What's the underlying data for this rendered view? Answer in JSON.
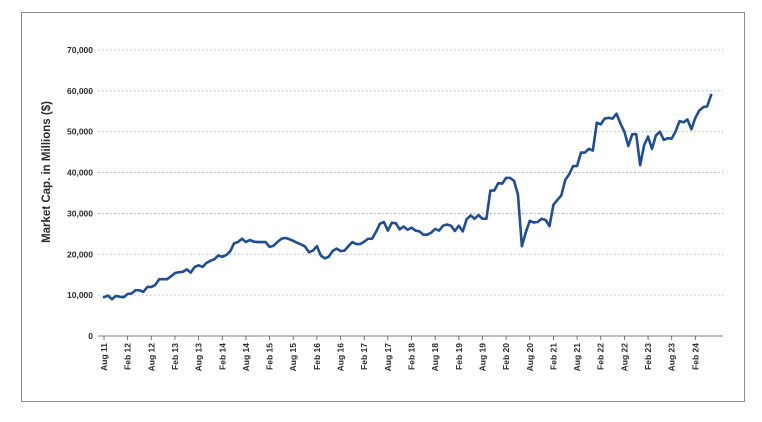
{
  "chart_data": {
    "type": "line",
    "title": "",
    "xlabel": "",
    "ylabel": "Market Cap. in Millions ($)",
    "ylim": [
      0,
      70000
    ],
    "yticks": [
      "0",
      "10,000",
      "20,000",
      "30,000",
      "40,000",
      "50,000",
      "60,000",
      "70,000"
    ],
    "ytick_values": [
      0,
      10000,
      20000,
      30000,
      40000,
      50000,
      60000,
      70000
    ],
    "xticks": [
      "Aug 11",
      "Feb 12",
      "Aug 12",
      "Feb 13",
      "Aug 13",
      "Feb 14",
      "Aug 14",
      "Feb 15",
      "Aug 15",
      "Feb 16",
      "Aug 16",
      "Feb 17",
      "Aug 17",
      "Feb 18",
      "Aug 18",
      "Feb 19",
      "Aug 19",
      "Feb 20",
      "Aug 20",
      "Feb 21",
      "Aug 21",
      "Feb 22",
      "Aug 22",
      "Feb 23",
      "Aug 23",
      "Feb 24"
    ],
    "grid": true,
    "line_color": "#1f4e96",
    "series": [
      {
        "x_month_index": [
          0,
          1,
          2,
          3,
          4,
          5,
          6,
          7,
          8,
          9,
          10,
          11,
          12,
          13,
          14,
          15,
          16,
          17,
          18,
          19,
          20,
          21,
          22,
          23,
          24,
          25,
          26,
          27,
          28,
          29,
          30,
          31,
          32,
          33,
          34,
          35,
          36,
          37,
          38,
          39,
          40,
          41,
          42,
          43,
          44,
          45,
          46,
          47,
          48,
          49,
          50,
          51,
          52,
          53,
          54,
          55,
          56,
          57,
          58,
          59,
          60,
          61,
          62,
          63,
          64,
          65,
          66,
          67,
          68,
          69,
          70,
          71,
          72,
          73,
          74,
          75,
          76,
          77,
          78,
          79,
          80,
          81,
          82,
          83,
          84,
          85,
          86,
          87,
          88,
          89,
          90,
          91,
          92,
          93,
          94,
          95,
          96,
          97,
          98,
          99,
          100,
          101,
          102,
          103,
          104,
          105,
          106,
          107,
          108,
          109,
          110,
          111,
          112,
          113,
          114,
          115,
          116,
          117,
          118,
          119,
          120,
          121,
          122,
          123,
          124,
          125,
          126,
          127,
          128,
          129,
          130,
          131,
          132,
          133,
          134,
          135,
          136,
          137,
          138,
          139,
          140,
          141,
          142,
          143,
          144,
          145,
          146,
          147,
          148,
          149,
          150,
          151,
          152,
          153,
          154,
          155,
          156
        ],
        "values": [
          9500,
          9900,
          9000,
          9800,
          9600,
          9500,
          10300,
          10400,
          11200,
          11200,
          10800,
          12000,
          12000,
          12500,
          13900,
          13900,
          13900,
          14600,
          15400,
          15600,
          15700,
          16300,
          15500,
          16900,
          17300,
          16900,
          17900,
          18400,
          18800,
          19700,
          19400,
          19800,
          20700,
          22700,
          23000,
          23800,
          23000,
          23500,
          23100,
          23000,
          23000,
          23000,
          21800,
          22100,
          23000,
          23800,
          24000,
          23700,
          23300,
          22800,
          22400,
          21900,
          20500,
          20900,
          22000,
          19700,
          19000,
          19400,
          20800,
          21400,
          20800,
          20900,
          22000,
          23000,
          22500,
          22500,
          23100,
          23800,
          23800,
          25500,
          27500,
          27900,
          25800,
          27700,
          27600,
          26100,
          26800,
          26000,
          26500,
          25800,
          25600,
          24800,
          24800,
          25300,
          26200,
          25800,
          27000,
          27300,
          27000,
          25700,
          27000,
          25600,
          28600,
          29500,
          28700,
          29600,
          28700,
          28700,
          35600,
          35600,
          37400,
          37300,
          38700,
          38700,
          38000,
          34600,
          22000,
          25400,
          28200,
          27800,
          27900,
          28700,
          28400,
          26900,
          32100,
          33300,
          34400,
          38200,
          39600,
          41600,
          41600,
          44900,
          44900,
          45800,
          45400,
          52200,
          51800,
          53200,
          53400,
          53200,
          54400,
          52000,
          50000,
          46500,
          49400,
          49400,
          41800,
          46700,
          48800,
          45800,
          49100,
          50000,
          48000,
          48400,
          48300,
          50100,
          52600,
          52300,
          53000,
          50600,
          53400,
          55200,
          56000,
          56200,
          59000
        ]
      }
    ]
  }
}
